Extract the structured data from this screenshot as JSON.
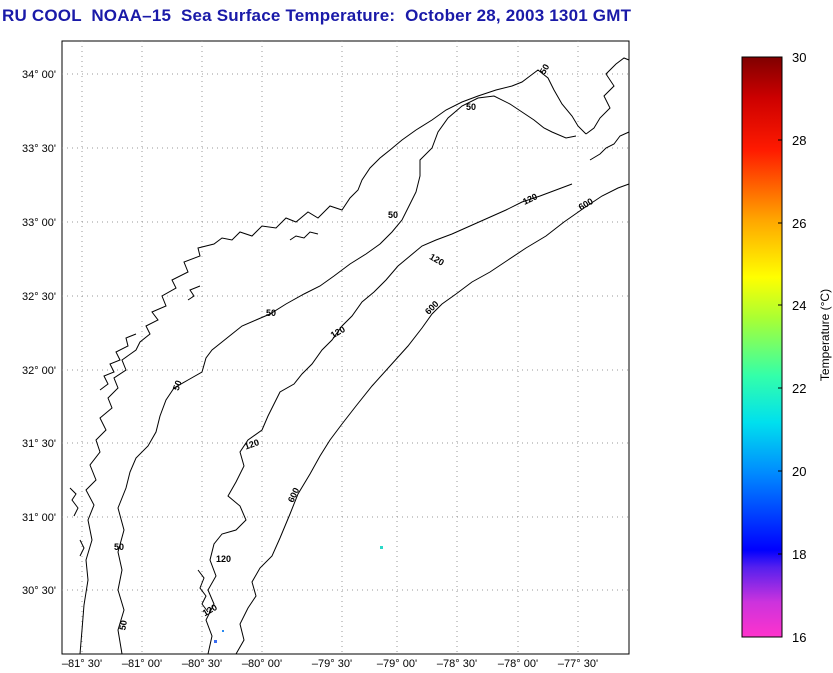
{
  "title": "RU COOL  NOAA–15  Sea Surface Temperature:  October 28, 2003 1301 GMT",
  "map": {
    "lat_labels": [
      "34° 00'",
      "33° 30'",
      "33° 00'",
      "32° 30'",
      "32° 00'",
      "31° 30'",
      "31° 00'",
      "30° 30'"
    ],
    "lon_labels": [
      "–81° 30'",
      "–81° 00'",
      "–80° 30'",
      "–80° 00'",
      "–79° 30'",
      "–79° 00'",
      "–78° 30'",
      "–78° 00'",
      "–77° 30'"
    ],
    "isobath_labels": [
      "50",
      "50",
      "50",
      "50",
      "50",
      "50",
      "50",
      "120",
      "120",
      "120",
      "120",
      "120",
      "120",
      "600",
      "600",
      "600"
    ]
  },
  "colorbar": {
    "label": "Temperature (°C)",
    "ticks": [
      "30",
      "28",
      "26",
      "24",
      "22",
      "20",
      "18",
      "16"
    ],
    "range": [
      16,
      30
    ]
  }
}
